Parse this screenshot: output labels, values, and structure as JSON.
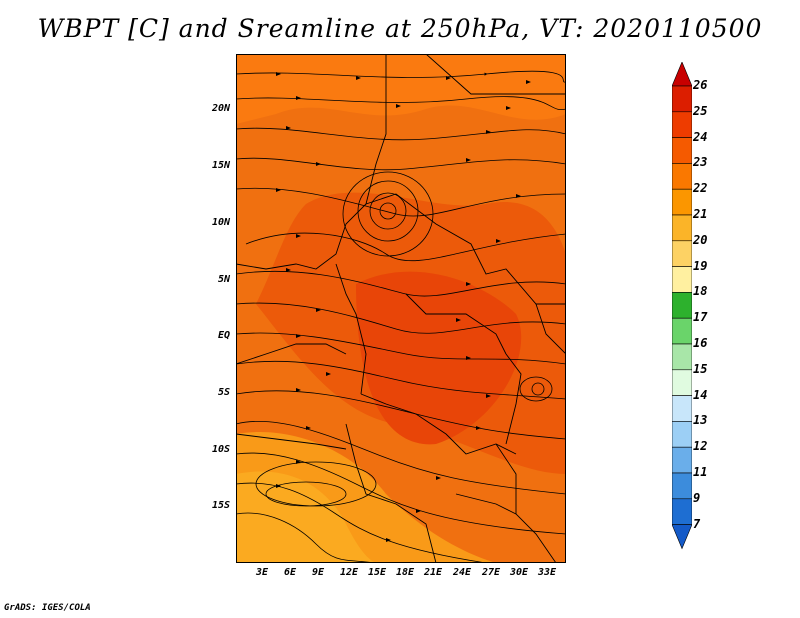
{
  "title": "WBPT [C] and Sreamline at 250hPa, VT: 2020110500",
  "credit": "GrADS: IGES/COLA",
  "map": {
    "lat_labels": [
      "20N",
      "15N",
      "10N",
      "5N",
      "EQ",
      "5S",
      "10S",
      "15S"
    ],
    "lon_labels": [
      "3E",
      "6E",
      "9E",
      "12E",
      "15E",
      "18E",
      "21E",
      "24E",
      "27E",
      "30E",
      "33E"
    ]
  },
  "colorbar": {
    "levels": [
      "26",
      "25",
      "24",
      "23",
      "22",
      "21",
      "20",
      "19",
      "18",
      "17",
      "16",
      "15",
      "14",
      "13",
      "12",
      "11",
      "9",
      "7"
    ],
    "colors": [
      "#c80000",
      "#dc1e00",
      "#ee3c00",
      "#f55a00",
      "#fa7800",
      "#fb9600",
      "#fbb428",
      "#fdd264",
      "#fff0a0",
      "#2db12d",
      "#6ad46a",
      "#a8e6a8",
      "#e0fbe0",
      "#c8e6fa",
      "#9ccff5",
      "#6aaeea",
      "#3c8cdc",
      "#1e6ed2",
      "#145ac8"
    ]
  }
}
